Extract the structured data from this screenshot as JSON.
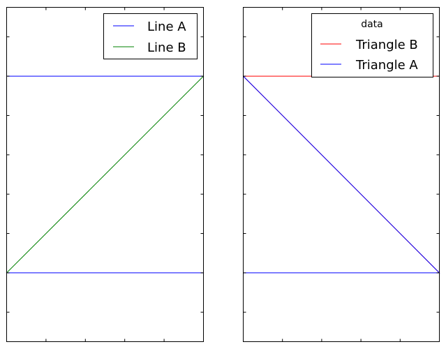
{
  "chart_data": [
    {
      "type": "line",
      "title": "",
      "xlabel": "",
      "ylabel": "",
      "xlim": [
        0,
        1
      ],
      "ylim": [
        -0.35,
        1.35
      ],
      "grid": false,
      "legend": {
        "placement": "top-right",
        "title": ""
      },
      "series": [
        {
          "name": "Line A",
          "color": "#0000ff",
          "x": [
            0,
            1,
            null,
            0,
            1
          ],
          "y": [
            0,
            0,
            null,
            1,
            1
          ]
        },
        {
          "name": "Line B",
          "color": "#008000",
          "x": [
            0,
            1
          ],
          "y": [
            0,
            1
          ]
        }
      ]
    },
    {
      "type": "line",
      "title": "",
      "xlabel": "",
      "ylabel": "",
      "xlim": [
        0,
        1
      ],
      "ylim": [
        -0.35,
        1.35
      ],
      "grid": false,
      "legend": {
        "placement": "top-right",
        "title": "data"
      },
      "series": [
        {
          "name": "Triangle B",
          "color": "#ff0000",
          "x": [
            0,
            1,
            1,
            0
          ],
          "y": [
            1,
            1,
            0,
            1
          ]
        },
        {
          "name": "Triangle A",
          "color": "#0000ff",
          "x": [
            0,
            1,
            0
          ],
          "y": [
            0,
            0,
            1
          ]
        }
      ]
    }
  ]
}
